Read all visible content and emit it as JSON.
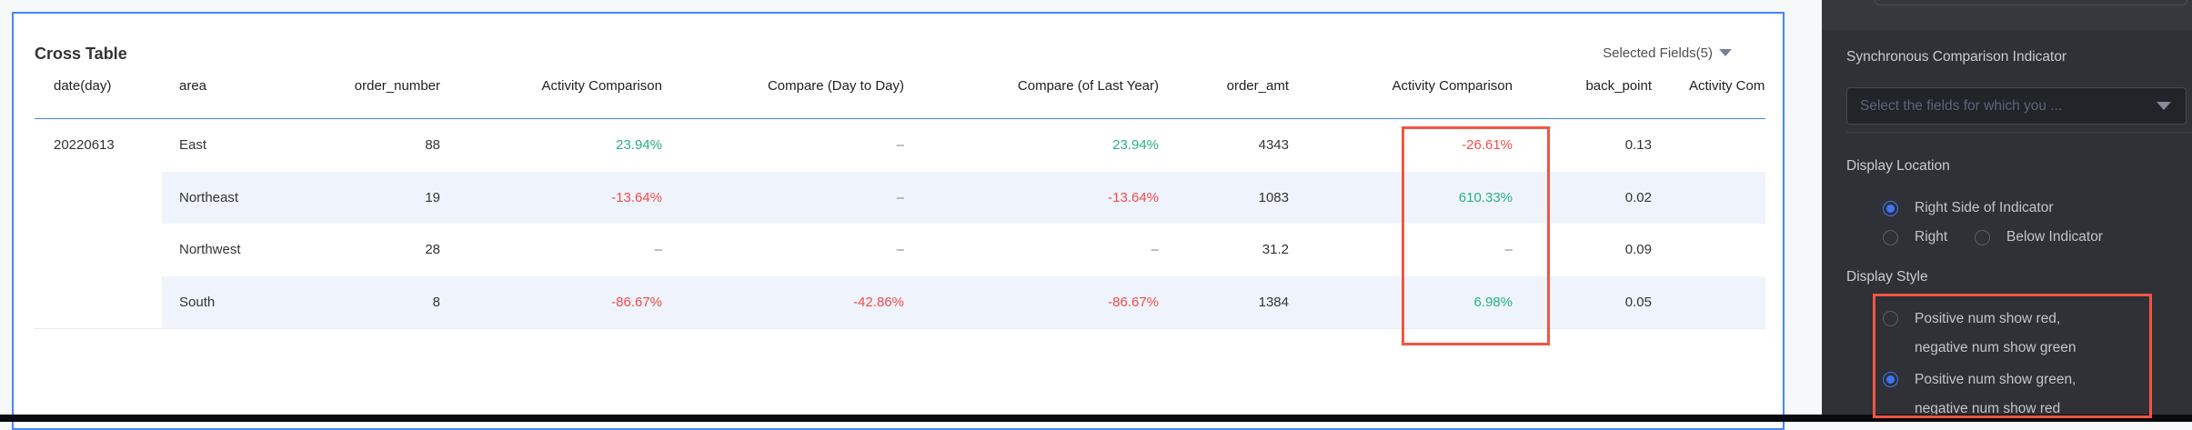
{
  "theme": {
    "green": "#26b17e",
    "red": "#f24b4b",
    "highlight_red": "#f25542",
    "accent_blue": "#3c77f6",
    "card_border_blue": "#4486fb",
    "stripe": "#eff4fc"
  },
  "card": {
    "title": "Cross Table",
    "selected_fields_label": "Selected Fields(5)",
    "table": {
      "columns": [
        {
          "label": "date(day)",
          "align": "left"
        },
        {
          "label": "area",
          "align": "left"
        },
        {
          "label": "order_number",
          "align": "right"
        },
        {
          "label": "Activity Comparison",
          "align": "right"
        },
        {
          "label": "Compare (Day to Day)",
          "align": "right"
        },
        {
          "label": "Compare (of Last Year)",
          "align": "right"
        },
        {
          "label": "order_amt",
          "align": "right"
        },
        {
          "label": "Activity Comparison",
          "align": "right"
        },
        {
          "label": "back_point",
          "align": "right"
        },
        {
          "label": "Activity Comparison",
          "align": "left"
        }
      ],
      "rows": [
        {
          "striped": false,
          "cells": [
            {
              "t": "20220613"
            },
            {
              "t": "East"
            },
            {
              "t": "88"
            },
            {
              "t": "23.94%",
              "tone": "green"
            },
            {
              "t": "–",
              "tone": "dash"
            },
            {
              "t": "23.94%",
              "tone": "green"
            },
            {
              "t": "4343"
            },
            {
              "t": "-26.61%",
              "tone": "red"
            },
            {
              "t": "0.13"
            },
            {
              "t": ""
            }
          ]
        },
        {
          "striped": true,
          "cells": [
            {
              "t": ""
            },
            {
              "t": "Northeast"
            },
            {
              "t": "19"
            },
            {
              "t": "-13.64%",
              "tone": "red"
            },
            {
              "t": "–",
              "tone": "dash"
            },
            {
              "t": "-13.64%",
              "tone": "red"
            },
            {
              "t": "1083"
            },
            {
              "t": "610.33%",
              "tone": "green"
            },
            {
              "t": "0.02"
            },
            {
              "t": ""
            }
          ]
        },
        {
          "striped": false,
          "cells": [
            {
              "t": ""
            },
            {
              "t": "Northwest"
            },
            {
              "t": "28"
            },
            {
              "t": "–",
              "tone": "dash"
            },
            {
              "t": "–",
              "tone": "dash"
            },
            {
              "t": "–",
              "tone": "dash"
            },
            {
              "t": "31.2"
            },
            {
              "t": "–",
              "tone": "dash"
            },
            {
              "t": "0.09"
            },
            {
              "t": ""
            }
          ]
        },
        {
          "striped": true,
          "cells": [
            {
              "t": ""
            },
            {
              "t": "South"
            },
            {
              "t": "8"
            },
            {
              "t": "-86.67%",
              "tone": "red"
            },
            {
              "t": "-42.86%",
              "tone": "red"
            },
            {
              "t": "-86.67%",
              "tone": "red"
            },
            {
              "t": "1384"
            },
            {
              "t": "6.98%",
              "tone": "green"
            },
            {
              "t": "0.05"
            },
            {
              "t": ""
            }
          ]
        }
      ]
    }
  },
  "panel": {
    "sync_indicator_label": "Synchronous Comparison Indicator",
    "field_select_placeholder": "Select the fields for which you ...",
    "display_location": {
      "label": "Display Location",
      "options": [
        {
          "label": "Right Side of Indicator",
          "selected": true
        },
        {
          "label": "Right",
          "selected": false
        },
        {
          "label": "Below Indicator",
          "selected": false
        }
      ]
    },
    "display_style": {
      "label": "Display Style",
      "options": [
        {
          "line1": "Positive num show red,",
          "line2": "negative num show green",
          "selected": false
        },
        {
          "line1": "Positive num show green,",
          "line2": "negative num show red",
          "selected": true
        }
      ]
    }
  }
}
